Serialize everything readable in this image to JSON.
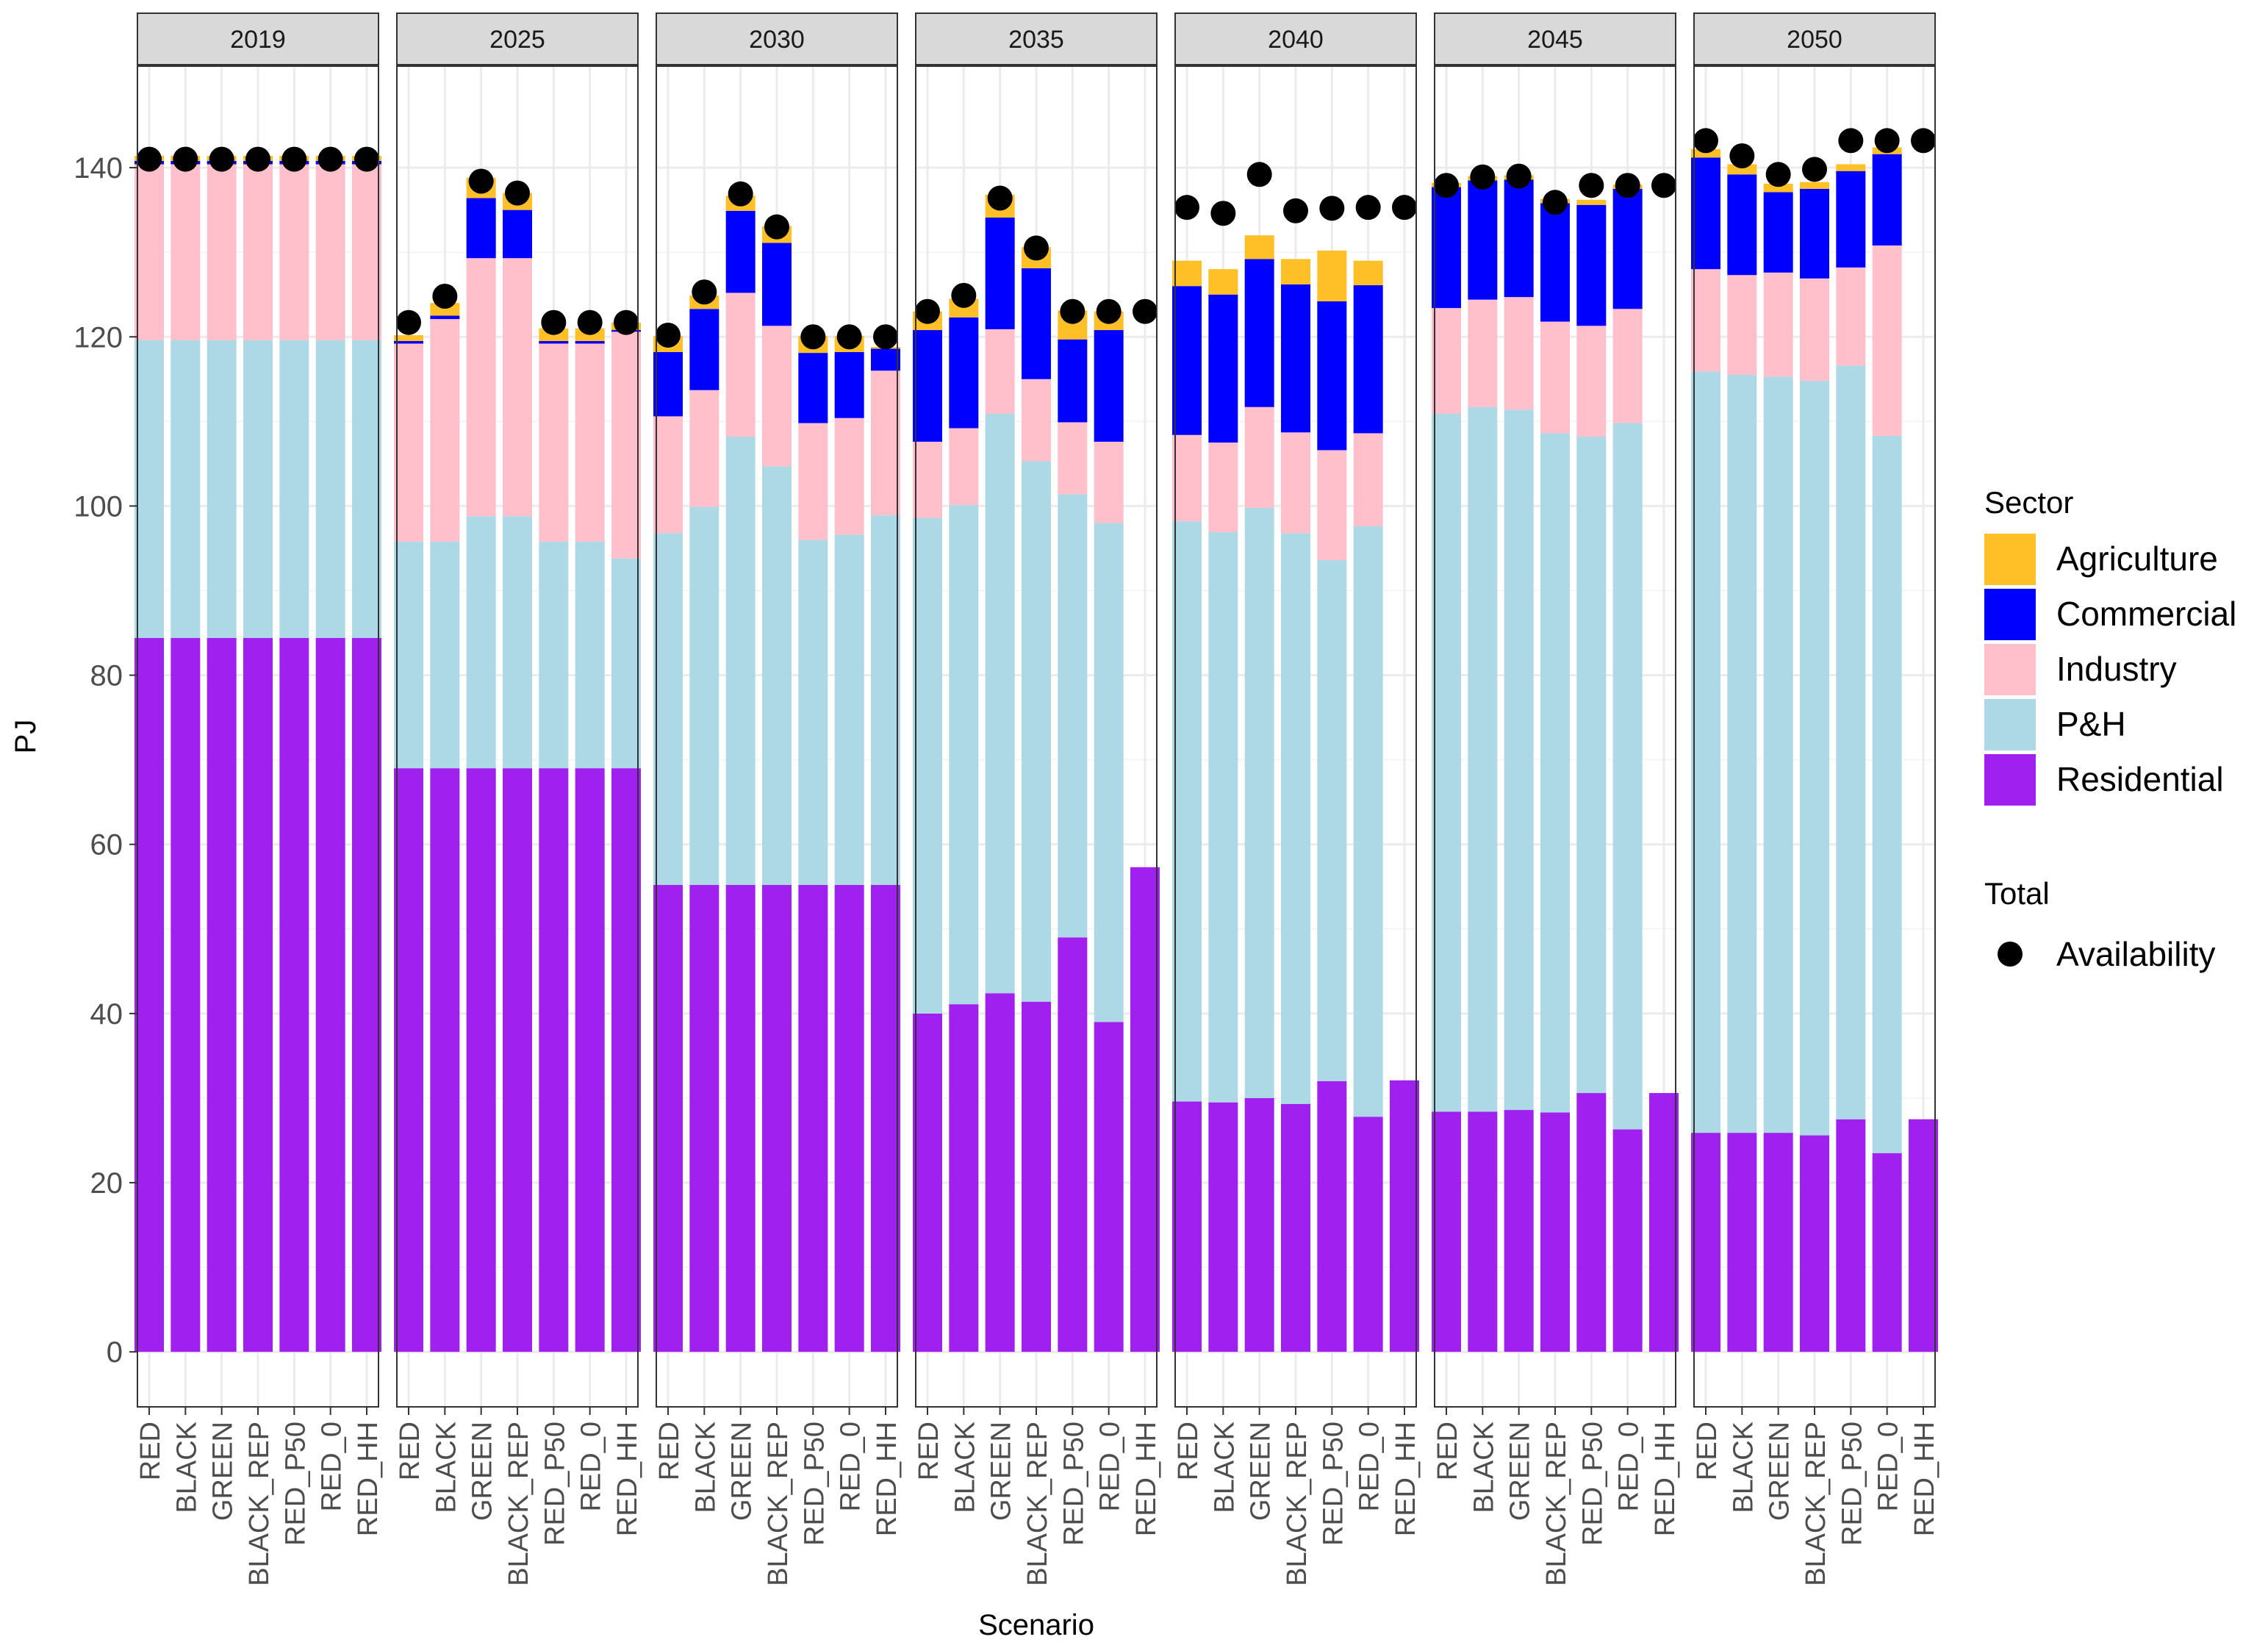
{
  "chart_data": {
    "type": "bar",
    "stacked": true,
    "xlabel": "Scenario",
    "ylabel": "PJ",
    "ylim": [
      -6.5,
      152
    ],
    "y_ticks": [
      0,
      20,
      40,
      60,
      80,
      100,
      120,
      140
    ],
    "grid": true,
    "legend_placement": "right",
    "legend": {
      "fill_title": "Sector",
      "point_title": "Total",
      "point_label": "Availability"
    },
    "scenarios": [
      "RED",
      "BLACK",
      "GREEN",
      "BLACK_REP",
      "RED_P50",
      "RED_0",
      "RED_HH"
    ],
    "sectors": [
      {
        "name": "Residential",
        "color": "#A020F0"
      },
      {
        "name": "P&H",
        "color": "#ADD8E6"
      },
      {
        "name": "Industry",
        "color": "#FFC0CB"
      },
      {
        "name": "Commercial",
        "color": "#0000FF"
      },
      {
        "name": "Agriculture",
        "color": "#FFBF26"
      }
    ],
    "legend_order": [
      "Agriculture",
      "Commercial",
      "Industry",
      "P&H",
      "Residential"
    ],
    "availability_color": "#000000",
    "panels": [
      {
        "year": "2019",
        "bars": [
          {
            "Residential": 84.4,
            "P&H": 35.2,
            "Industry": 20.8,
            "Commercial": 0.4,
            "Agriculture": 0.6
          },
          {
            "Residential": 84.4,
            "P&H": 35.2,
            "Industry": 20.8,
            "Commercial": 0.4,
            "Agriculture": 0.6
          },
          {
            "Residential": 84.4,
            "P&H": 35.2,
            "Industry": 20.8,
            "Commercial": 0.4,
            "Agriculture": 0.6
          },
          {
            "Residential": 84.4,
            "P&H": 35.2,
            "Industry": 20.8,
            "Commercial": 0.4,
            "Agriculture": 0.6
          },
          {
            "Residential": 84.4,
            "P&H": 35.2,
            "Industry": 20.8,
            "Commercial": 0.4,
            "Agriculture": 0.6
          },
          {
            "Residential": 84.4,
            "P&H": 35.2,
            "Industry": 20.8,
            "Commercial": 0.4,
            "Agriculture": 0.6
          },
          {
            "Residential": 84.4,
            "P&H": 35.2,
            "Industry": 20.8,
            "Commercial": 0.4,
            "Agriculture": 0.6
          }
        ],
        "availability": [
          141,
          141,
          141,
          141,
          141,
          141,
          141
        ]
      },
      {
        "year": "2025",
        "bars": [
          {
            "Residential": 69,
            "P&H": 26.8,
            "Industry": 23.4,
            "Commercial": 0.3,
            "Agriculture": 0.7
          },
          {
            "Residential": 69,
            "P&H": 26.8,
            "Industry": 26.3,
            "Commercial": 0.4,
            "Agriculture": 1.5
          },
          {
            "Residential": 69,
            "P&H": 29.8,
            "Industry": 30.5,
            "Commercial": 7.1,
            "Agriculture": 2.4
          },
          {
            "Residential": 69,
            "P&H": 29.8,
            "Industry": 30.5,
            "Commercial": 5.7,
            "Agriculture": 2.0
          },
          {
            "Residential": 69,
            "P&H": 26.8,
            "Industry": 23.4,
            "Commercial": 0.3,
            "Agriculture": 1.5
          },
          {
            "Residential": 69,
            "P&H": 26.8,
            "Industry": 23.4,
            "Commercial": 0.3,
            "Agriculture": 1.5
          },
          {
            "Residential": 69,
            "P&H": 24.8,
            "Industry": 26.8,
            "Commercial": 0.2,
            "Agriculture": 0.9
          }
        ],
        "availability": [
          121.7,
          124.8,
          138.4,
          137.0,
          121.7,
          121.7,
          121.7
        ]
      },
      {
        "year": "2030",
        "bars": [
          {
            "Residential": 55.2,
            "P&H": 41.6,
            "Industry": 13.8,
            "Commercial": 7.6,
            "Agriculture": 1.9
          },
          {
            "Residential": 55.2,
            "P&H": 44.7,
            "Industry": 13.8,
            "Commercial": 9.6,
            "Agriculture": 1.6
          },
          {
            "Residential": 55.2,
            "P&H": 53.0,
            "Industry": 17.0,
            "Commercial": 9.7,
            "Agriculture": 1.8
          },
          {
            "Residential": 55.2,
            "P&H": 49.5,
            "Industry": 16.6,
            "Commercial": 9.8,
            "Agriculture": 2.0
          },
          {
            "Residential": 55.2,
            "P&H": 40.8,
            "Industry": 13.8,
            "Commercial": 8.3,
            "Agriculture": 2.0
          },
          {
            "Residential": 55.2,
            "P&H": 41.4,
            "Industry": 13.8,
            "Commercial": 7.8,
            "Agriculture": 1.9
          },
          {
            "Residential": 55.2,
            "P&H": 43.7,
            "Industry": 17.1,
            "Commercial": 2.6,
            "Agriculture": 0.2
          }
        ],
        "availability": [
          120.2,
          125.3,
          136.9,
          133.0,
          120.0,
          120.0,
          120.0
        ]
      },
      {
        "year": "2035",
        "bars": [
          {
            "Residential": 40.0,
            "P&H": 58.6,
            "Industry": 9.0,
            "Commercial": 13.2,
            "Agriculture": 2.2
          },
          {
            "Residential": 41.1,
            "P&H": 59.0,
            "Industry": 9.1,
            "Commercial": 13.1,
            "Agriculture": 2.2
          },
          {
            "Residential": 42.4,
            "P&H": 68.5,
            "Industry": 10.0,
            "Commercial": 13.2,
            "Agriculture": 2.7
          },
          {
            "Residential": 41.4,
            "P&H": 63.9,
            "Industry": 9.7,
            "Commercial": 13.1,
            "Agriculture": 2.5
          },
          {
            "Residential": 49.0,
            "P&H": 52.4,
            "Industry": 8.5,
            "Commercial": 9.8,
            "Agriculture": 3.4
          },
          {
            "Residential": 39.0,
            "P&H": 59.0,
            "Industry": 9.6,
            "Commercial": 13.2,
            "Agriculture": 2.2
          },
          {
            "Residential": 57.3,
            "P&H": 0,
            "Industry": 0,
            "Commercial": 0,
            "Agriculture": 0
          }
        ],
        "availability": [
          123.0,
          124.9,
          136.4,
          130.5,
          123.0,
          123.0,
          123.0
        ]
      },
      {
        "year": "2040",
        "bars": [
          {
            "Residential": 29.6,
            "P&H": 68.6,
            "Industry": 10.2,
            "Commercial": 17.6,
            "Agriculture": 3.0
          },
          {
            "Residential": 29.5,
            "P&H": 67.4,
            "Industry": 10.6,
            "Commercial": 17.5,
            "Agriculture": 3.0
          },
          {
            "Residential": 30.0,
            "P&H": 69.8,
            "Industry": 11.9,
            "Commercial": 17.5,
            "Agriculture": 2.8
          },
          {
            "Residential": 29.3,
            "P&H": 67.5,
            "Industry": 11.9,
            "Commercial": 17.5,
            "Agriculture": 3.0
          },
          {
            "Residential": 32.0,
            "P&H": 61.6,
            "Industry": 13.0,
            "Commercial": 17.6,
            "Agriculture": 6.0
          },
          {
            "Residential": 27.8,
            "P&H": 69.8,
            "Industry": 11.0,
            "Commercial": 17.5,
            "Agriculture": 2.9
          },
          {
            "Residential": 32.1,
            "P&H": 0,
            "Industry": 0,
            "Commercial": 0,
            "Agriculture": 0
          }
        ],
        "availability": [
          135.3,
          134.6,
          139.2,
          134.9,
          135.2,
          135.3,
          135.3
        ]
      },
      {
        "year": "2045",
        "bars": [
          {
            "Residential": 28.4,
            "P&H": 82.5,
            "Industry": 12.5,
            "Commercial": 14.3,
            "Agriculture": 0.5
          },
          {
            "Residential": 28.4,
            "P&H": 83.3,
            "Industry": 12.7,
            "Commercial": 14.1,
            "Agriculture": 0.5
          },
          {
            "Residential": 28.6,
            "P&H": 82.8,
            "Industry": 13.3,
            "Commercial": 13.9,
            "Agriculture": 0.5
          },
          {
            "Residential": 28.3,
            "P&H": 80.3,
            "Industry": 13.2,
            "Commercial": 14.0,
            "Agriculture": 0.5
          },
          {
            "Residential": 30.6,
            "P&H": 77.6,
            "Industry": 13.1,
            "Commercial": 14.3,
            "Agriculture": 0.6
          },
          {
            "Residential": 26.3,
            "P&H": 83.5,
            "Industry": 13.5,
            "Commercial": 14.2,
            "Agriculture": 0.5
          },
          {
            "Residential": 30.6,
            "P&H": 0,
            "Industry": 0,
            "Commercial": 0,
            "Agriculture": 0
          }
        ],
        "availability": [
          137.9,
          138.9,
          139.0,
          135.9,
          137.9,
          137.9,
          137.9
        ]
      },
      {
        "year": "2050",
        "bars": [
          {
            "Residential": 25.9,
            "P&H": 90.0,
            "Industry": 12.1,
            "Commercial": 13.2,
            "Agriculture": 1.0
          },
          {
            "Residential": 25.9,
            "P&H": 89.6,
            "Industry": 11.8,
            "Commercial": 11.9,
            "Agriculture": 1.2
          },
          {
            "Residential": 25.9,
            "P&H": 89.4,
            "Industry": 12.3,
            "Commercial": 9.5,
            "Agriculture": 1.0
          },
          {
            "Residential": 25.6,
            "P&H": 89.2,
            "Industry": 12.1,
            "Commercial": 10.6,
            "Agriculture": 0.8
          },
          {
            "Residential": 27.5,
            "P&H": 89.1,
            "Industry": 11.6,
            "Commercial": 11.4,
            "Agriculture": 0.8
          },
          {
            "Residential": 23.5,
            "P&H": 84.8,
            "Industry": 22.5,
            "Commercial": 10.8,
            "Agriculture": 0.8
          },
          {
            "Residential": 27.5,
            "P&H": 0,
            "Industry": 0,
            "Commercial": 0,
            "Agriculture": 0
          }
        ],
        "availability": [
          143.2,
          141.4,
          139.2,
          139.8,
          143.2,
          143.2,
          143.2
        ]
      }
    ]
  }
}
